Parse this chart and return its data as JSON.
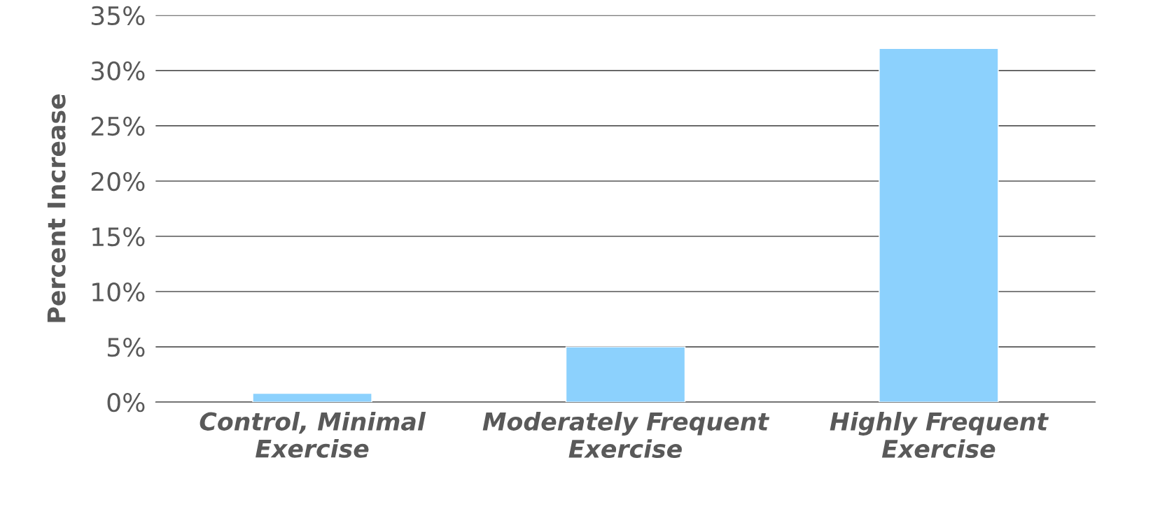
{
  "chart_data": {
    "type": "bar",
    "ylabel": "Percent Increase",
    "categories": [
      "Control, Minimal\nExercise",
      "Moderately Frequent\nExercise",
      "Highly Frequent\nExercise"
    ],
    "values": [
      0.8,
      5,
      32
    ],
    "color": "#8cd1fd",
    "ylim": [
      0,
      35
    ],
    "yticks": [
      {
        "value": 0,
        "label": "0%"
      },
      {
        "value": 5,
        "label": "5%"
      },
      {
        "value": 10,
        "label": "10%"
      },
      {
        "value": 15,
        "label": "15%"
      },
      {
        "value": 20,
        "label": "20%"
      },
      {
        "value": 25,
        "label": "25%"
      },
      {
        "value": 30,
        "label": "30%"
      },
      {
        "value": 35,
        "label": "35%"
      }
    ],
    "grid": "y"
  }
}
